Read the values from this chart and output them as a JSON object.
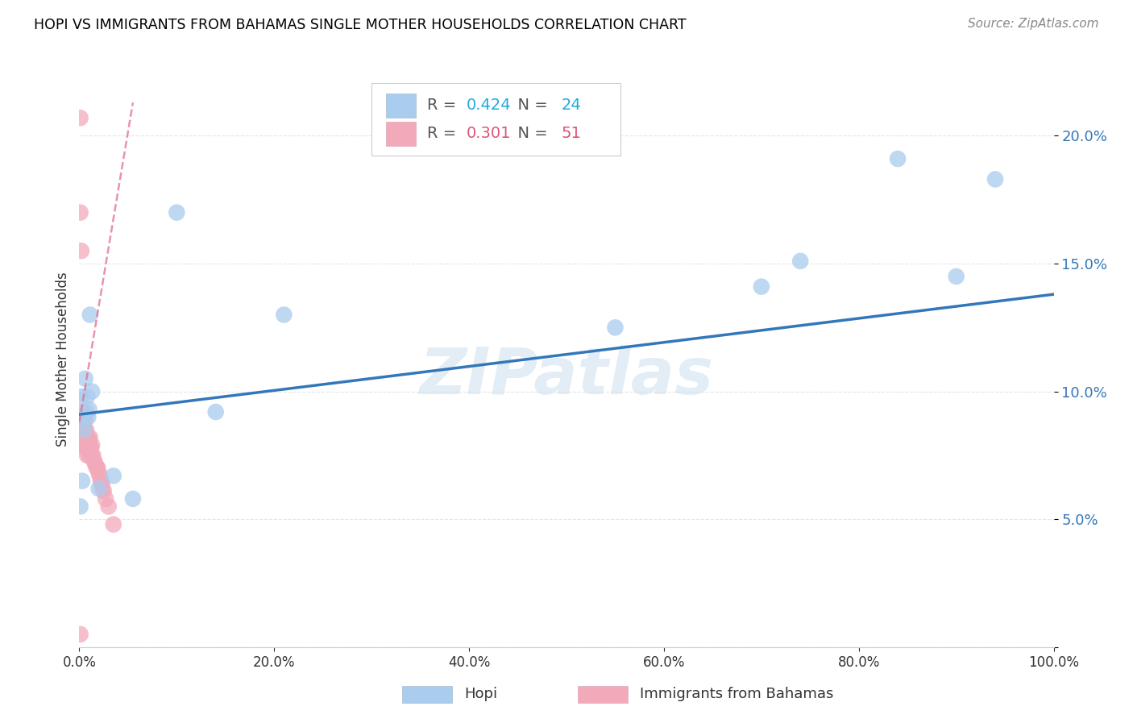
{
  "title": "HOPI VS IMMIGRANTS FROM BAHAMAS SINGLE MOTHER HOUSEHOLDS CORRELATION CHART",
  "source": "Source: ZipAtlas.com",
  "ylabel": "Single Mother Households",
  "watermark": "ZIPatlas",
  "hopi_R": 0.424,
  "hopi_N": 24,
  "bahamas_R": 0.301,
  "bahamas_N": 51,
  "hopi_color": "#aaccee",
  "bahamas_color": "#f2aabb",
  "hopi_line_color": "#3377bb",
  "bahamas_line_color": "#e06688",
  "hopi_x": [
    0.001,
    0.002,
    0.003,
    0.004,
    0.005,
    0.006,
    0.007,
    0.008,
    0.009,
    0.01,
    0.011,
    0.013,
    0.02,
    0.035,
    0.055,
    0.1,
    0.14,
    0.21,
    0.55,
    0.7,
    0.74,
    0.84,
    0.9,
    0.94
  ],
  "hopi_y": [
    0.055,
    0.098,
    0.065,
    0.09,
    0.085,
    0.105,
    0.092,
    0.098,
    0.09,
    0.093,
    0.13,
    0.1,
    0.062,
    0.067,
    0.058,
    0.17,
    0.092,
    0.13,
    0.125,
    0.141,
    0.151,
    0.191,
    0.145,
    0.183
  ],
  "bahamas_x": [
    0.001,
    0.001,
    0.001,
    0.002,
    0.002,
    0.002,
    0.003,
    0.003,
    0.003,
    0.004,
    0.004,
    0.004,
    0.005,
    0.005,
    0.005,
    0.006,
    0.006,
    0.006,
    0.006,
    0.007,
    0.007,
    0.007,
    0.008,
    0.008,
    0.008,
    0.009,
    0.009,
    0.01,
    0.01,
    0.01,
    0.011,
    0.011,
    0.012,
    0.013,
    0.013,
    0.014,
    0.015,
    0.016,
    0.017,
    0.018,
    0.019,
    0.02,
    0.021,
    0.022,
    0.023,
    0.024,
    0.025,
    0.027,
    0.03,
    0.035,
    0.001
  ],
  "bahamas_y": [
    0.207,
    0.17,
    0.09,
    0.155,
    0.09,
    0.083,
    0.092,
    0.086,
    0.079,
    0.09,
    0.085,
    0.079,
    0.09,
    0.085,
    0.08,
    0.089,
    0.085,
    0.082,
    0.078,
    0.085,
    0.082,
    0.078,
    0.082,
    0.079,
    0.075,
    0.082,
    0.078,
    0.081,
    0.078,
    0.075,
    0.082,
    0.078,
    0.078,
    0.079,
    0.075,
    0.075,
    0.073,
    0.072,
    0.071,
    0.07,
    0.07,
    0.068,
    0.067,
    0.065,
    0.064,
    0.062,
    0.061,
    0.058,
    0.055,
    0.048,
    0.005
  ],
  "xmin": 0.0,
  "xmax": 1.0,
  "ymin": 0.0,
  "ymax": 0.225,
  "yticks": [
    0.0,
    0.05,
    0.1,
    0.15,
    0.2
  ],
  "ytick_labels": [
    "",
    "5.0%",
    "10.0%",
    "15.0%",
    "20.0%"
  ],
  "xticks": [
    0.0,
    0.2,
    0.4,
    0.6,
    0.8,
    1.0
  ],
  "xtick_labels": [
    "0.0%",
    "",
    "",
    "",
    "",
    "100.0%"
  ],
  "background_color": "#ffffff",
  "grid_color": "#e0e0e0",
  "hopi_line_x0": 0.0,
  "hopi_line_x1": 1.0,
  "hopi_line_y0": 0.091,
  "hopi_line_y1": 0.138,
  "bahamas_line_x0": 0.0,
  "bahamas_line_x1": 0.055,
  "bahamas_line_y0": 0.088,
  "bahamas_line_y1": 0.213
}
